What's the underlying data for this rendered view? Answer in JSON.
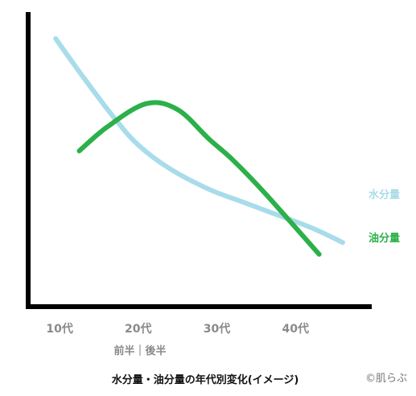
{
  "chart_data": {
    "type": "line",
    "title": "水分量・油分量の年代別変化(イメージ)",
    "xlabel": "",
    "ylabel": "",
    "x_ticks": [
      "10代",
      "20代",
      "30代",
      "40代"
    ],
    "x_subtitle": "前半｜後半",
    "xlim": [
      0.6,
      5.0
    ],
    "ylim": [
      0,
      100
    ],
    "grid": false,
    "legend": "right",
    "series": [
      {
        "name": "水分量",
        "color": "#a8dcea",
        "x": [
          0.95,
          1.3,
          1.7,
          2.0,
          2.4,
          2.9,
          3.3,
          3.7,
          4.2,
          4.6
        ],
        "values": [
          91,
          78,
          64,
          55,
          47,
          40,
          36,
          32,
          27,
          22
        ]
      },
      {
        "name": "油分量",
        "color": "#2bb04a",
        "x": [
          1.25,
          1.6,
          2.1,
          2.5,
          2.9,
          3.2,
          3.6,
          4.3
        ],
        "values": [
          53,
          61,
          69,
          67,
          57,
          50,
          39,
          18
        ]
      }
    ],
    "credit": "©肌らぶ"
  }
}
